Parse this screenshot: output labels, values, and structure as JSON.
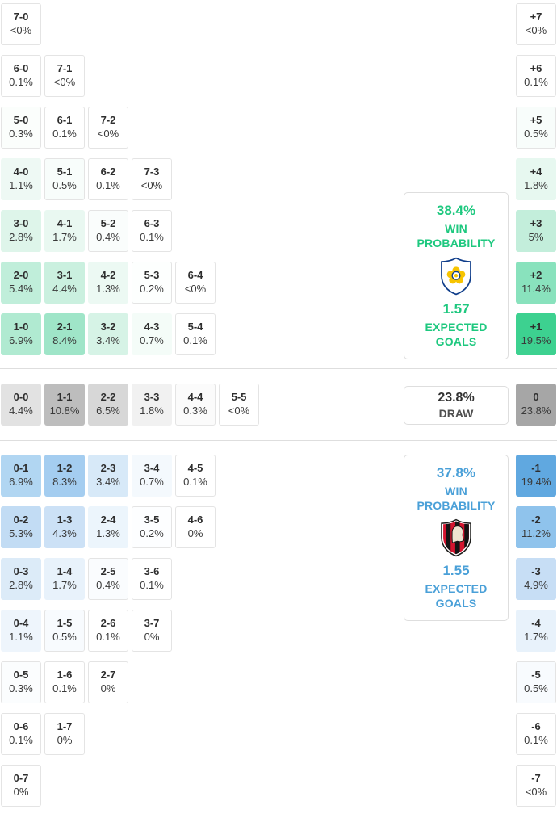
{
  "chart_data": {
    "type": "heatmap",
    "title": "Correct score probability matrix with win/draw probabilities and expected goals",
    "sections": {
      "home": {
        "accent": "#1ec87f",
        "card": {
          "win_pct": "38.4%",
          "win_word": "WIN",
          "probability_word": "PROBABILITY",
          "expected_goals": "1.57",
          "expected_word": "EXPECTED",
          "goals_word": "GOALS",
          "badge_icon": "leeds-united-crest"
        },
        "rows": [
          [
            {
              "score": "7-0",
              "prob": "<0%",
              "bg": "#ffffff"
            }
          ],
          [
            {
              "score": "6-0",
              "prob": "0.1%",
              "bg": "#ffffff"
            },
            {
              "score": "7-1",
              "prob": "<0%",
              "bg": "#ffffff"
            }
          ],
          [
            {
              "score": "5-0",
              "prob": "0.3%",
              "bg": "#fbfefc"
            },
            {
              "score": "6-1",
              "prob": "0.1%",
              "bg": "#ffffff"
            },
            {
              "score": "7-2",
              "prob": "<0%",
              "bg": "#ffffff"
            }
          ],
          [
            {
              "score": "4-0",
              "prob": "1.1%",
              "bg": "#eef9f4"
            },
            {
              "score": "5-1",
              "prob": "0.5%",
              "bg": "#f8fdfb"
            },
            {
              "score": "6-2",
              "prob": "0.1%",
              "bg": "#ffffff"
            },
            {
              "score": "7-3",
              "prob": "<0%",
              "bg": "#ffffff"
            }
          ],
          [
            {
              "score": "3-0",
              "prob": "2.8%",
              "bg": "#def5ea"
            },
            {
              "score": "4-1",
              "prob": "1.7%",
              "bg": "#e9f8f1"
            },
            {
              "score": "5-2",
              "prob": "0.4%",
              "bg": "#fafdfc"
            },
            {
              "score": "6-3",
              "prob": "0.1%",
              "bg": "#ffffff"
            }
          ],
          [
            {
              "score": "2-0",
              "prob": "5.4%",
              "bg": "#c0eeda"
            },
            {
              "score": "3-1",
              "prob": "4.4%",
              "bg": "#caf0df"
            },
            {
              "score": "4-2",
              "prob": "1.3%",
              "bg": "#ecf9f3"
            },
            {
              "score": "5-3",
              "prob": "0.2%",
              "bg": "#fdfffe"
            },
            {
              "score": "6-4",
              "prob": "<0%",
              "bg": "#ffffff"
            }
          ],
          [
            {
              "score": "1-0",
              "prob": "6.9%",
              "bg": "#b0ead1"
            },
            {
              "score": "2-1",
              "prob": "8.4%",
              "bg": "#9fe5c8"
            },
            {
              "score": "3-2",
              "prob": "3.4%",
              "bg": "#d6f3e6"
            },
            {
              "score": "4-3",
              "prob": "0.7%",
              "bg": "#f4fcf8"
            },
            {
              "score": "5-4",
              "prob": "0.1%",
              "bg": "#ffffff"
            }
          ]
        ],
        "diffs": [
          {
            "score": "+7",
            "prob": "<0%",
            "bg": "#ffffff"
          },
          {
            "score": "+6",
            "prob": "0.1%",
            "bg": "#ffffff"
          },
          {
            "score": "+5",
            "prob": "0.5%",
            "bg": "#f8fdfb"
          },
          {
            "score": "+4",
            "prob": "1.8%",
            "bg": "#e7f8f0"
          },
          {
            "score": "+3",
            "prob": "5%",
            "bg": "#c3eedb"
          },
          {
            "score": "+2",
            "prob": "11.4%",
            "bg": "#89e2bd"
          },
          {
            "score": "+1",
            "prob": "19.5%",
            "bg": "#3dd190"
          }
        ]
      },
      "draw": {
        "card": {
          "pct": "23.8%",
          "label": "DRAW"
        },
        "rows": [
          [
            {
              "score": "0-0",
              "prob": "4.4%",
              "bg": "#e2e2e2"
            },
            {
              "score": "1-1",
              "prob": "10.8%",
              "bg": "#bdbdbd"
            },
            {
              "score": "2-2",
              "prob": "6.5%",
              "bg": "#d7d7d7"
            },
            {
              "score": "3-3",
              "prob": "1.8%",
              "bg": "#f1f1f1"
            },
            {
              "score": "4-4",
              "prob": "0.3%",
              "bg": "#fbfbfb"
            },
            {
              "score": "5-5",
              "prob": "<0%",
              "bg": "#ffffff"
            }
          ]
        ],
        "diffs": [
          {
            "score": "0",
            "prob": "23.8%",
            "bg": "#a6a6a6"
          }
        ]
      },
      "away": {
        "accent": "#4aa0d8",
        "card": {
          "win_pct": "37.8%",
          "win_word": "WIN",
          "probability_word": "PROBABILITY",
          "expected_goals": "1.55",
          "expected_word": "EXPECTED",
          "goals_word": "GOALS",
          "badge_icon": "afc-bournemouth-crest"
        },
        "rows": [
          [
            {
              "score": "0-1",
              "prob": "6.9%",
              "bg": "#b1d6f2"
            },
            {
              "score": "1-2",
              "prob": "8.3%",
              "bg": "#a4cdf0"
            },
            {
              "score": "2-3",
              "prob": "3.4%",
              "bg": "#d7e9f8"
            },
            {
              "score": "3-4",
              "prob": "0.7%",
              "bg": "#f4f9fd"
            },
            {
              "score": "4-5",
              "prob": "0.1%",
              "bg": "#ffffff"
            }
          ],
          [
            {
              "score": "0-2",
              "prob": "5.3%",
              "bg": "#c2dcf4"
            },
            {
              "score": "1-3",
              "prob": "4.3%",
              "bg": "#cce1f6"
            },
            {
              "score": "2-4",
              "prob": "1.3%",
              "bg": "#ecf5fc"
            },
            {
              "score": "3-5",
              "prob": "0.2%",
              "bg": "#fdfeff"
            },
            {
              "score": "4-6",
              "prob": "0%",
              "bg": "#ffffff"
            }
          ],
          [
            {
              "score": "0-3",
              "prob": "2.8%",
              "bg": "#dcebf8"
            },
            {
              "score": "1-4",
              "prob": "1.7%",
              "bg": "#e8f2fb"
            },
            {
              "score": "2-5",
              "prob": "0.4%",
              "bg": "#fafcfe"
            },
            {
              "score": "3-6",
              "prob": "0.1%",
              "bg": "#ffffff"
            }
          ],
          [
            {
              "score": "0-4",
              "prob": "1.1%",
              "bg": "#eef5fc"
            },
            {
              "score": "1-5",
              "prob": "0.5%",
              "bg": "#f8fbfe"
            },
            {
              "score": "2-6",
              "prob": "0.1%",
              "bg": "#ffffff"
            },
            {
              "score": "3-7",
              "prob": "0%",
              "bg": "#ffffff"
            }
          ],
          [
            {
              "score": "0-5",
              "prob": "0.3%",
              "bg": "#fbfdfe"
            },
            {
              "score": "1-6",
              "prob": "0.1%",
              "bg": "#ffffff"
            },
            {
              "score": "2-7",
              "prob": "0%",
              "bg": "#ffffff"
            }
          ],
          [
            {
              "score": "0-6",
              "prob": "0.1%",
              "bg": "#ffffff"
            },
            {
              "score": "1-7",
              "prob": "0%",
              "bg": "#ffffff"
            }
          ],
          [
            {
              "score": "0-7",
              "prob": "0%",
              "bg": "#ffffff"
            }
          ]
        ],
        "diffs": [
          {
            "score": "-1",
            "prob": "19.4%",
            "bg": "#60a8e0"
          },
          {
            "score": "-2",
            "prob": "11.2%",
            "bg": "#8fc3ec"
          },
          {
            "score": "-3",
            "prob": "4.9%",
            "bg": "#c7def5"
          },
          {
            "score": "-4",
            "prob": "1.7%",
            "bg": "#e8f2fb"
          },
          {
            "score": "-5",
            "prob": "0.5%",
            "bg": "#f8fbfe"
          },
          {
            "score": "-6",
            "prob": "0.1%",
            "bg": "#ffffff"
          },
          {
            "score": "-7",
            "prob": "<0%",
            "bg": "#ffffff"
          }
        ]
      }
    }
  }
}
